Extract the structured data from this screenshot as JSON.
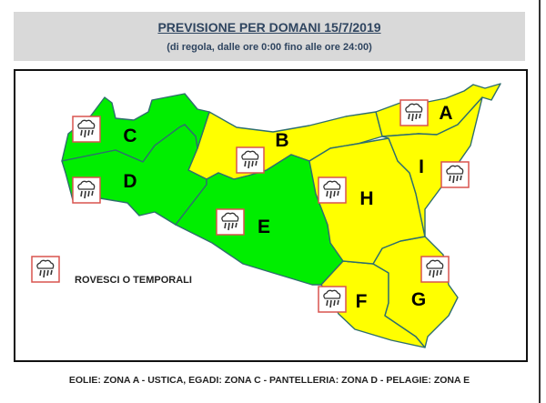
{
  "header": {
    "title": "PREVISIONE PER DOMANI 15/7/2019",
    "subtitle": "(di regola, dalle ore 0:00 fino alle ore 24:00)"
  },
  "colors": {
    "green": "#00ee00",
    "yellow": "#ffff00",
    "border": "#2e6e6e",
    "icon_border": "#d9534f"
  },
  "zones": [
    {
      "id": "A",
      "level": "yellow",
      "icon": "showers-thunderstorm-icon"
    },
    {
      "id": "B",
      "level": "yellow",
      "icon": "showers-thunderstorm-icon"
    },
    {
      "id": "C",
      "level": "green",
      "icon": "showers-thunderstorm-icon"
    },
    {
      "id": "D",
      "level": "green",
      "icon": "showers-thunderstorm-icon"
    },
    {
      "id": "E",
      "level": "green",
      "icon": "showers-thunderstorm-icon"
    },
    {
      "id": "F",
      "level": "yellow",
      "icon": "showers-thunderstorm-icon"
    },
    {
      "id": "G",
      "level": "yellow",
      "icon": "showers-thunderstorm-icon"
    },
    {
      "id": "H",
      "level": "yellow",
      "icon": "showers-thunderstorm-icon"
    },
    {
      "id": "I",
      "level": "yellow",
      "icon": "showers-thunderstorm-icon"
    }
  ],
  "legend": {
    "label": "ROVESCI O TEMPORALI",
    "icon": "showers-thunderstorm-icon"
  },
  "footer": "EOLIE: ZONA A - USTICA, EGADI: ZONA C - PANTELLERIA: ZONA D - PELAGIE: ZONA E"
}
